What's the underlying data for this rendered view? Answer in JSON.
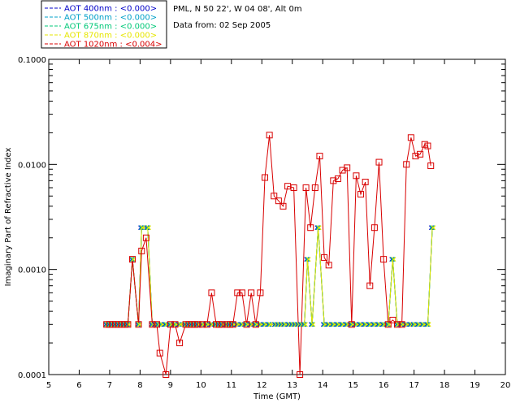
{
  "chart_data": {
    "type": "line",
    "info_lines": [
      "PML, N 50 22', W 04 08', Alt 0m",
      "Data from: 02 Sep 2005"
    ],
    "xlabel": "Time (GMT)",
    "ylabel": "Imaginary Part of Refractive Index",
    "xlim": [
      5,
      20
    ],
    "ylim": [
      0.0001,
      0.1
    ],
    "y_scale": "log",
    "x_ticks": [
      "5",
      "6",
      "7",
      "8",
      "9",
      "10",
      "11",
      "12",
      "13",
      "14",
      "15",
      "16",
      "17",
      "18",
      "19",
      "20"
    ],
    "y_ticks": [
      {
        "value": 0.0001,
        "label": "0.0001"
      },
      {
        "value": 0.001,
        "label": "0.0010"
      },
      {
        "value": 0.01,
        "label": "0.0100"
      },
      {
        "value": 0.1,
        "label": "0.1000"
      }
    ],
    "grid": false,
    "legend_position": "top-left outside",
    "series": [
      {
        "name": "AOT  400nm : <0.000>",
        "color": "#0000c8",
        "marker": "x"
      },
      {
        "name": "AOT  500nm : <0.000>",
        "color": "#00a0c8",
        "marker": "x"
      },
      {
        "name": "AOT  675nm : <0.000>",
        "color": "#00c878",
        "marker": "x"
      },
      {
        "name": "AOT  870nm : <0.000>",
        "color": "#e6e600",
        "marker": "x"
      },
      {
        "name": "AOT 1020nm : <0.004>",
        "color": "#d80000",
        "marker": "square"
      }
    ],
    "low_wavelength_points": [
      [
        6.9,
        0.0003
      ],
      [
        7.0,
        0.0003
      ],
      [
        7.1,
        0.0003
      ],
      [
        7.2,
        0.0003
      ],
      [
        7.3,
        0.0003
      ],
      [
        7.4,
        0.0003
      ],
      [
        7.5,
        0.0003
      ],
      [
        7.6,
        0.0003
      ],
      [
        7.75,
        0.00125
      ],
      [
        7.95,
        0.0003
      ],
      [
        8.05,
        0.0025
      ],
      [
        8.25,
        0.0025
      ],
      [
        8.4,
        0.0003
      ],
      [
        8.5,
        0.0003
      ],
      [
        8.6,
        0.0003
      ],
      [
        8.7,
        0.0003
      ],
      [
        8.85,
        0.0003
      ],
      [
        9.0,
        0.0003
      ],
      [
        9.15,
        0.0003
      ],
      [
        9.3,
        0.0003
      ],
      [
        9.5,
        0.0003
      ],
      [
        9.6,
        0.0003
      ],
      [
        9.7,
        0.0003
      ],
      [
        9.8,
        0.0003
      ],
      [
        9.9,
        0.0003
      ],
      [
        10.05,
        0.0003
      ],
      [
        10.2,
        0.0003
      ],
      [
        10.35,
        0.0003
      ],
      [
        10.5,
        0.0003
      ],
      [
        10.6,
        0.0003
      ],
      [
        10.7,
        0.0003
      ],
      [
        10.85,
        0.0003
      ],
      [
        10.95,
        0.0003
      ],
      [
        11.05,
        0.0003
      ],
      [
        11.2,
        0.0003
      ],
      [
        11.35,
        0.0003
      ],
      [
        11.5,
        0.0003
      ],
      [
        11.65,
        0.0003
      ],
      [
        11.8,
        0.0003
      ],
      [
        11.95,
        0.0003
      ],
      [
        12.1,
        0.0003
      ],
      [
        12.25,
        0.0003
      ],
      [
        12.45,
        0.0003
      ],
      [
        12.55,
        0.0003
      ],
      [
        12.65,
        0.0003
      ],
      [
        12.75,
        0.0003
      ],
      [
        12.9,
        0.0003
      ],
      [
        13.0,
        0.0003
      ],
      [
        13.1,
        0.0003
      ],
      [
        13.2,
        0.0003
      ],
      [
        13.3,
        0.0003
      ],
      [
        13.4,
        0.0003
      ],
      [
        13.5,
        0.00125
      ],
      [
        13.65,
        0.0003
      ],
      [
        13.85,
        0.0025
      ],
      [
        14.05,
        0.0003
      ],
      [
        14.2,
        0.0003
      ],
      [
        14.35,
        0.0003
      ],
      [
        14.5,
        0.0003
      ],
      [
        14.65,
        0.0003
      ],
      [
        14.8,
        0.0003
      ],
      [
        14.95,
        0.0003
      ],
      [
        15.1,
        0.0003
      ],
      [
        15.25,
        0.0003
      ],
      [
        15.4,
        0.0003
      ],
      [
        15.55,
        0.0003
      ],
      [
        15.7,
        0.0003
      ],
      [
        15.85,
        0.0003
      ],
      [
        16.0,
        0.0003
      ],
      [
        16.15,
        0.0003
      ],
      [
        16.3,
        0.00125
      ],
      [
        16.45,
        0.0003
      ],
      [
        16.6,
        0.0003
      ],
      [
        16.75,
        0.0003
      ],
      [
        16.9,
        0.0003
      ],
      [
        17.0,
        0.0003
      ],
      [
        17.15,
        0.0003
      ],
      [
        17.3,
        0.0003
      ],
      [
        17.45,
        0.0003
      ],
      [
        17.6,
        0.0025
      ]
    ],
    "series_1020nm": [
      [
        6.9,
        0.0003
      ],
      [
        7.0,
        0.0003
      ],
      [
        7.1,
        0.0003
      ],
      [
        7.2,
        0.0003
      ],
      [
        7.3,
        0.0003
      ],
      [
        7.4,
        0.0003
      ],
      [
        7.5,
        0.0003
      ],
      [
        7.6,
        0.0003
      ],
      [
        7.75,
        0.00125
      ],
      [
        7.95,
        0.0003
      ],
      [
        8.05,
        0.0015
      ],
      [
        8.2,
        0.002
      ],
      [
        8.4,
        0.0003
      ],
      [
        8.55,
        0.0003
      ],
      [
        8.65,
        0.00016
      ],
      [
        8.85,
        8e-05
      ],
      [
        9.0,
        0.0003
      ],
      [
        9.15,
        0.0003
      ],
      [
        9.3,
        0.0002
      ],
      [
        9.5,
        0.0003
      ],
      [
        9.6,
        0.0003
      ],
      [
        9.7,
        0.0003
      ],
      [
        9.8,
        0.0003
      ],
      [
        9.9,
        0.0003
      ],
      [
        10.05,
        0.0003
      ],
      [
        10.2,
        0.0003
      ],
      [
        10.35,
        0.0006
      ],
      [
        10.5,
        0.0003
      ],
      [
        10.6,
        0.0003
      ],
      [
        10.7,
        0.0003
      ],
      [
        10.85,
        0.0003
      ],
      [
        10.95,
        0.0003
      ],
      [
        11.05,
        0.0003
      ],
      [
        11.2,
        0.0006
      ],
      [
        11.35,
        0.0006
      ],
      [
        11.5,
        0.0003
      ],
      [
        11.65,
        0.0006
      ],
      [
        11.8,
        0.0003
      ],
      [
        11.95,
        0.0006
      ],
      [
        12.1,
        0.0075
      ],
      [
        12.25,
        0.019
      ],
      [
        12.4,
        0.005
      ],
      [
        12.55,
        0.0045
      ],
      [
        12.7,
        0.004
      ],
      [
        12.85,
        0.0062
      ],
      [
        13.05,
        0.006
      ],
      [
        13.25,
        8e-05
      ],
      [
        13.45,
        0.006
      ],
      [
        13.6,
        0.0025
      ],
      [
        13.75,
        0.006
      ],
      [
        13.9,
        0.012
      ],
      [
        14.05,
        0.0013
      ],
      [
        14.2,
        0.0011
      ],
      [
        14.35,
        0.007
      ],
      [
        14.5,
        0.0073
      ],
      [
        14.65,
        0.0088
      ],
      [
        14.8,
        0.0093
      ],
      [
        14.95,
        0.0003
      ],
      [
        15.1,
        0.0078
      ],
      [
        15.25,
        0.0052
      ],
      [
        15.4,
        0.0068
      ],
      [
        15.55,
        0.0007
      ],
      [
        15.7,
        0.0025
      ],
      [
        15.85,
        0.0105
      ],
      [
        16.0,
        0.00125
      ],
      [
        16.15,
        0.0003
      ],
      [
        16.3,
        0.00033
      ],
      [
        16.45,
        0.0003
      ],
      [
        16.6,
        0.0003
      ],
      [
        16.75,
        0.01
      ],
      [
        16.9,
        0.018
      ],
      [
        17.05,
        0.012
      ],
      [
        17.2,
        0.0125
      ],
      [
        17.35,
        0.0155
      ],
      [
        17.45,
        0.015
      ],
      [
        17.55,
        0.0097
      ]
    ]
  }
}
